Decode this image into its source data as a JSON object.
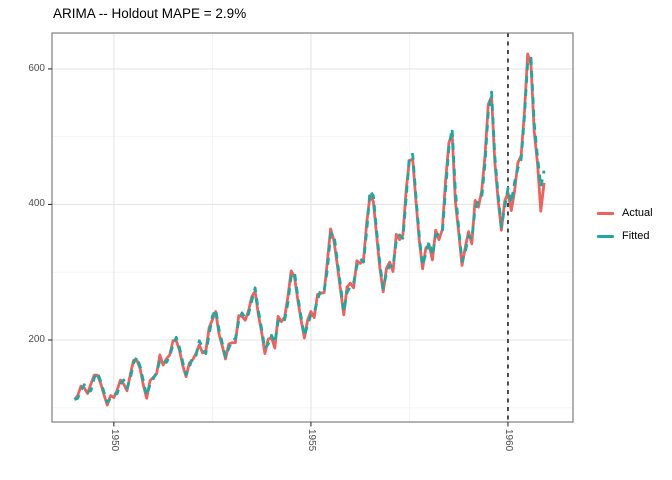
{
  "chart_data": {
    "type": "line",
    "title": "ARIMA -- Holdout MAPE = 2.9%",
    "x_start": 1949,
    "frequency": 12,
    "x_domain": [
      1948.43,
      1961.65
    ],
    "y_domain": [
      79,
      653
    ],
    "x_ticks": [
      {
        "value": 1950,
        "label": "1950"
      },
      {
        "value": 1955,
        "label": "1955"
      },
      {
        "value": 1960,
        "label": "1960"
      }
    ],
    "y_ticks": [
      {
        "value": 200,
        "label": "200"
      },
      {
        "value": 400,
        "label": "400"
      },
      {
        "value": 600,
        "label": "600"
      }
    ],
    "x_minor_ticks": [
      1952.5,
      1957.5
    ],
    "y_minor_ticks": [
      100,
      300,
      500
    ],
    "holdout_line_x": 1960,
    "legend_position": "right",
    "grid": true,
    "series": [
      {
        "name": "Actual",
        "color": "#EF615C",
        "style": "solid",
        "values": [
          112,
          118,
          132,
          129,
          121,
          135,
          148,
          148,
          136,
          119,
          104,
          118,
          115,
          126,
          141,
          135,
          125,
          149,
          170,
          170,
          158,
          133,
          114,
          140,
          145,
          150,
          178,
          163,
          172,
          178,
          199,
          199,
          184,
          162,
          146,
          166,
          171,
          180,
          193,
          181,
          183,
          218,
          230,
          242,
          209,
          191,
          172,
          194,
          196,
          196,
          236,
          235,
          229,
          243,
          264,
          272,
          237,
          211,
          180,
          201,
          204,
          188,
          235,
          227,
          234,
          264,
          302,
          293,
          259,
          229,
          203,
          229,
          242,
          233,
          267,
          269,
          270,
          315,
          364,
          347,
          312,
          274,
          237,
          278,
          284,
          277,
          317,
          313,
          318,
          374,
          413,
          405,
          355,
          306,
          271,
          306,
          315,
          301,
          356,
          348,
          355,
          422,
          465,
          467,
          404,
          347,
          305,
          336,
          340,
          318,
          362,
          348,
          363,
          435,
          491,
          505,
          404,
          359,
          310,
          337,
          360,
          342,
          406,
          396,
          420,
          472,
          548,
          559,
          463,
          407,
          362,
          405,
          417,
          391,
          419,
          461,
          472,
          535,
          622,
          606,
          508,
          461,
          390,
          432
        ]
      },
      {
        "name": "Fitted",
        "color": "#1CA9A2",
        "style": "dashed",
        "values": [
          112,
          114,
          126,
          134,
          124,
          125,
          144,
          152,
          139,
          123,
          108,
          114,
          119,
          121,
          135,
          141,
          129,
          143,
          166,
          175,
          161,
          139,
          118,
          134,
          143,
          152,
          170,
          172,
          167,
          176,
          193,
          204,
          188,
          167,
          149,
          160,
          175,
          177,
          199,
          189,
          180,
          208,
          235,
          245,
          215,
          195,
          175,
          188,
          199,
          202,
          228,
          240,
          232,
          238,
          258,
          277,
          243,
          216,
          187,
          194,
          207,
          196,
          227,
          233,
          230,
          255,
          294,
          300,
          264,
          234,
          206,
          222,
          237,
          240,
          259,
          274,
          272,
          303,
          356,
          357,
          318,
          280,
          242,
          270,
          279,
          284,
          310,
          320,
          315,
          362,
          420,
          413,
          362,
          312,
          276,
          299,
          310,
          308,
          347,
          355,
          350,
          410,
          472,
          474,
          411,
          353,
          310,
          328,
          345,
          325,
          355,
          356,
          357,
          422,
          484,
          512,
          420,
          365,
          316,
          330,
          354,
          349,
          394,
          404,
          410,
          461,
          537,
          566,
          472,
          414,
          367,
          395,
          424,
          402,
          432,
          453,
          466,
          529,
          610,
          616,
          520,
          470,
          426,
          450
        ]
      }
    ]
  },
  "legend": {
    "items": [
      {
        "label": "Actual",
        "color": "#EF615C"
      },
      {
        "label": "Fitted",
        "color": "#1CA9A2"
      }
    ]
  },
  "colors": {
    "background": "#FFFFFF",
    "panel_background": "#FFFFFF",
    "panel_border": "#7F7F7F",
    "grid_major": "#E5E5E5",
    "grid_minor": "#F2F2F2",
    "tick_mark": "#333333",
    "axis_text": "#4D4D4D",
    "holdout_line": "#000000",
    "title_text": "#000000"
  }
}
